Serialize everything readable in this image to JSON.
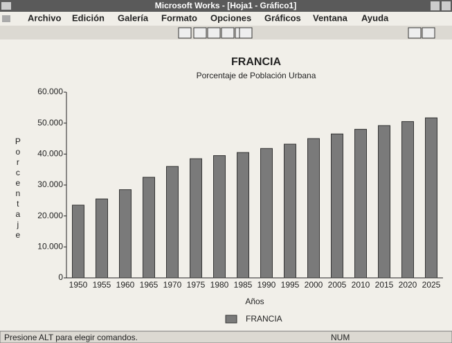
{
  "window": {
    "title": "Microsoft Works - [Hoja1 - Gráfico1]",
    "menu": [
      "Archivo",
      "Edición",
      "Galería",
      "Formato",
      "Opciones",
      "Gráficos",
      "Ventana",
      "Ayuda"
    ],
    "status": "Presione ALT para elegir comandos.",
    "status_num": "NUM"
  },
  "chart_data": {
    "type": "bar",
    "title": "FRANCIA",
    "subtitle": "Porcentaje de Población Urbana",
    "x_label": "Años",
    "y_label": "Porcentaje",
    "categories": [
      "1950",
      "1955",
      "1960",
      "1965",
      "1970",
      "1975",
      "1980",
      "1985",
      "1990",
      "1995",
      "2000",
      "2005",
      "2010",
      "2015",
      "2020",
      "2025"
    ],
    "series": [
      {
        "name": "FRANCIA",
        "color": "#7a7a7a",
        "values": [
          23.5,
          25.5,
          28.5,
          32.5,
          36,
          38.5,
          39.5,
          40.5,
          41.8,
          43.2,
          45,
          46.5,
          48,
          49.2,
          50.5,
          51.7
        ]
      }
    ],
    "ylim": [
      0,
      60
    ],
    "yticks": [
      {
        "value": 0,
        "label": "0"
      },
      {
        "value": 10,
        "label": "10.000"
      },
      {
        "value": 20,
        "label": "20.000"
      },
      {
        "value": 30,
        "label": "30.000"
      },
      {
        "value": 40,
        "label": "40.000"
      },
      {
        "value": 50,
        "label": "50.000"
      },
      {
        "value": 60,
        "label": "60.000"
      }
    ],
    "legend": "bottom"
  }
}
